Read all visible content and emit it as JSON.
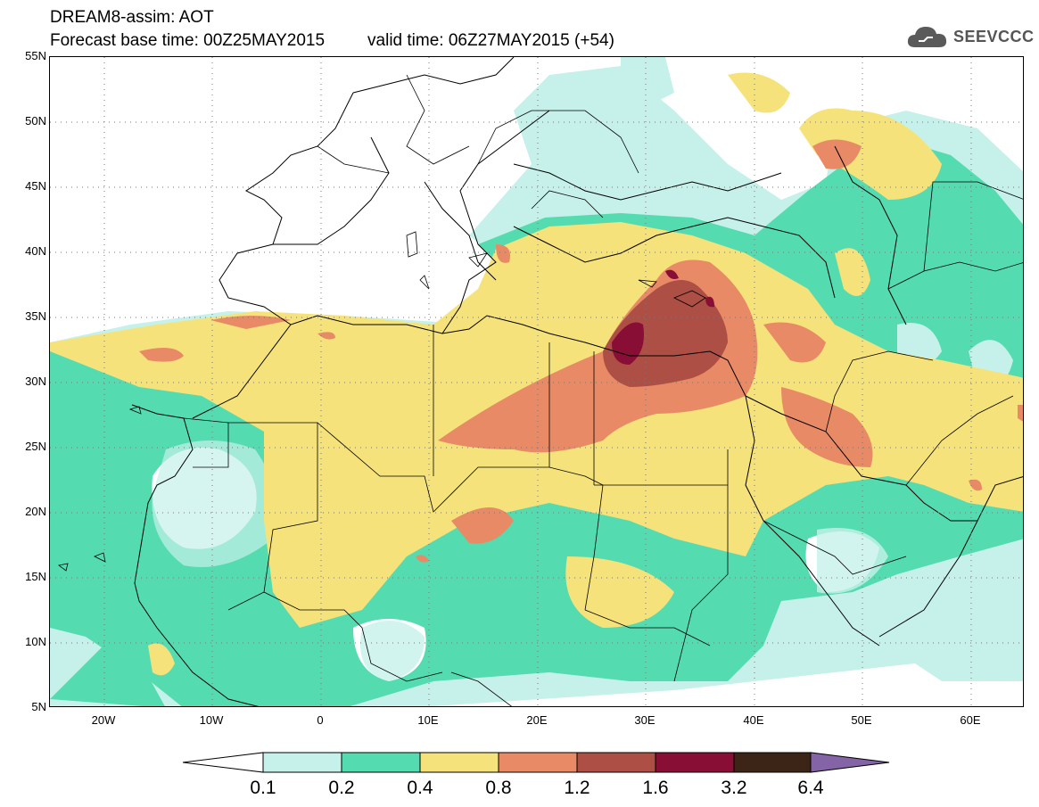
{
  "header": {
    "line1": "DREAM8-assim: AOT",
    "base_time": "Forecast base time: 00Z25MAY2015",
    "valid_time": "valid time: 06Z27MAY2015 (+54)"
  },
  "logo": {
    "text": "SEEVCCC",
    "icon": "cloud-icon"
  },
  "map": {
    "lat_labels": [
      "55N",
      "50N",
      "45N",
      "40N",
      "35N",
      "30N",
      "25N",
      "20N",
      "15N",
      "10N",
      "5N"
    ],
    "lon_labels": [
      "20W",
      "10W",
      "0",
      "10E",
      "20E",
      "30E",
      "40E",
      "50E",
      "60E"
    ],
    "lon_range": [
      -25,
      65
    ],
    "lat_range": [
      5,
      55
    ],
    "grid": "dotted"
  },
  "legend": {
    "thresholds": [
      "0.1",
      "0.2",
      "0.4",
      "0.8",
      "1.2",
      "1.6",
      "3.2",
      "6.4"
    ],
    "colors": [
      "#c5f1ea",
      "#55dbb0",
      "#f5e27a",
      "#e88a66",
      "#ad4f45",
      "#880e36",
      "#3c2417",
      "#8463a6"
    ]
  }
}
